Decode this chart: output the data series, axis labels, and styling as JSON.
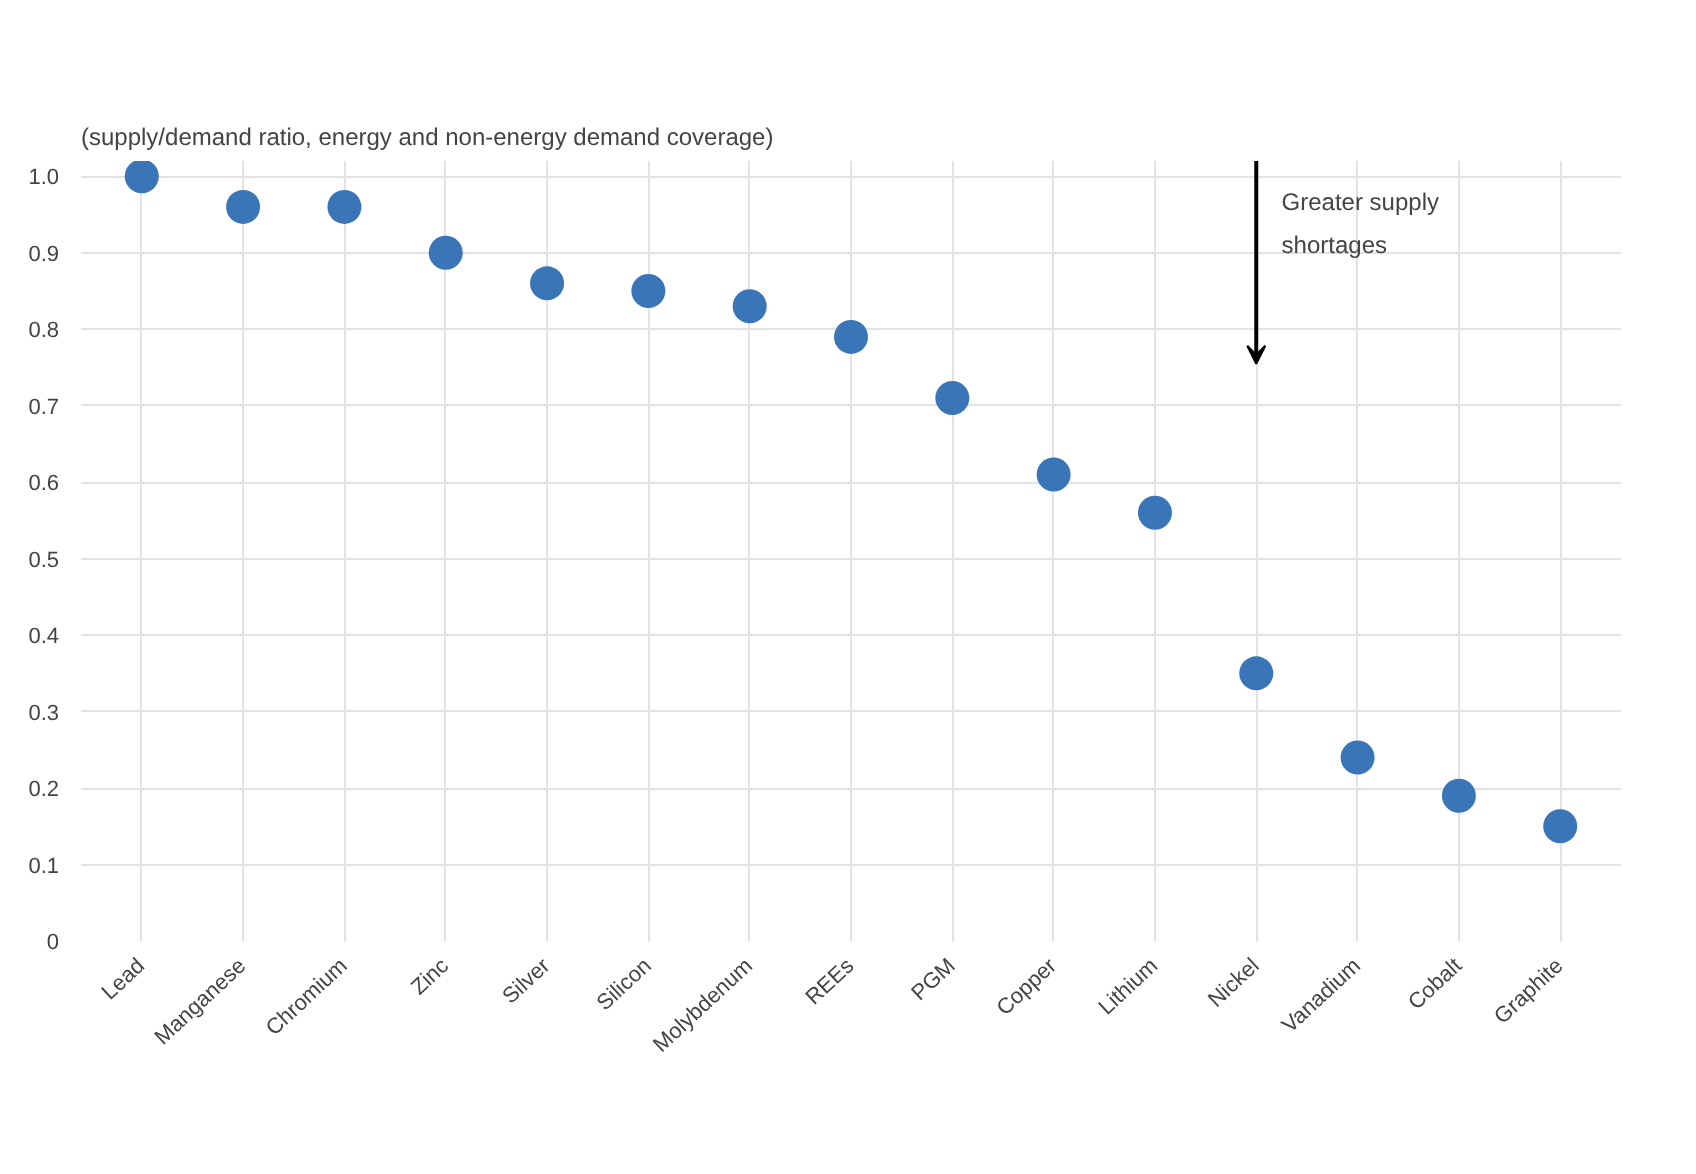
{
  "chart_data": {
    "type": "scatter",
    "title": "(supply/demand ratio, energy and non-energy demand coverage)",
    "categories": [
      "Lead",
      "Manganese",
      "Chromium",
      "Zinc",
      "Silver",
      "Silicon",
      "Molybdenum",
      "REEs",
      "PGM",
      "Copper",
      "Lithium",
      "Nickel",
      "Vanadium",
      "Cobalt",
      "Graphite"
    ],
    "values": [
      1.0,
      0.96,
      0.96,
      0.9,
      0.86,
      0.85,
      0.83,
      0.79,
      0.71,
      0.61,
      0.56,
      0.35,
      0.24,
      0.19,
      0.15
    ],
    "color": "#3a75b8",
    "ylim": [
      0,
      1.02
    ],
    "yticks": [
      0,
      0.1,
      0.2,
      0.3,
      0.4,
      0.5,
      0.6,
      0.7,
      0.8,
      0.9,
      {
        "value": 1.0,
        "label": "1.0"
      }
    ],
    "grid": true,
    "marker": "circle",
    "annotations": [
      "Greater supply shortages"
    ]
  }
}
